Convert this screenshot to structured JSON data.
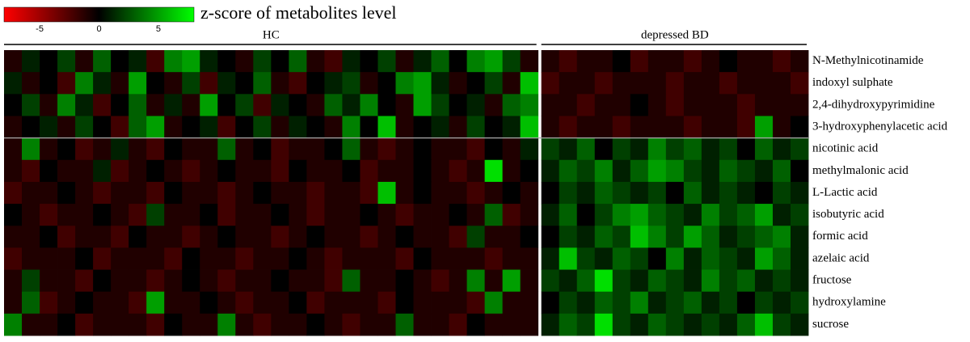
{
  "chart_data": {
    "type": "heatmap",
    "title": "z-score of metabolites level",
    "colors": [
      "#ff0000",
      "#000000",
      "#00ff00"
    ],
    "zlim": [
      -8,
      8
    ],
    "zticks": [
      -5,
      0,
      5
    ],
    "rows": [
      "N-Methylnicotinamide",
      "indoxyl sulphate",
      "2,4-dihydroxypyrimidine",
      "3-hydroxyphenylacetic acid",
      "nicotinic acid",
      "methylmalonic acid",
      "L-Lactic acid",
      "isobutyric acid",
      "formic acid",
      "azelaic acid",
      "fructose",
      "hydroxylamine",
      "sucrose"
    ],
    "groups": [
      {
        "name": "HC",
        "values": [
          [
            -1,
            1,
            0,
            2,
            -1,
            3,
            0,
            1,
            -2,
            4,
            5,
            1,
            0,
            -1,
            2,
            0,
            3,
            -1,
            -2,
            1,
            0,
            2,
            -1,
            1,
            3,
            0,
            4,
            5,
            2,
            -1
          ],
          [
            1,
            -1,
            0,
            -2,
            4,
            1,
            -1,
            5,
            0,
            -1,
            2,
            -2,
            1,
            0,
            3,
            -1,
            -2,
            0,
            1,
            2,
            -1,
            0,
            4,
            5,
            1,
            -1,
            0,
            2,
            -1,
            6
          ],
          [
            0,
            2,
            -1,
            4,
            1,
            -2,
            0,
            3,
            -1,
            1,
            -1,
            5,
            0,
            2,
            -2,
            1,
            0,
            -1,
            3,
            1,
            4,
            0,
            -1,
            5,
            2,
            0,
            1,
            -1,
            3,
            4
          ],
          [
            -1,
            0,
            1,
            -1,
            2,
            0,
            -2,
            3,
            5,
            -1,
            0,
            1,
            -2,
            0,
            2,
            -1,
            1,
            0,
            -1,
            4,
            0,
            6,
            -1,
            0,
            1,
            -1,
            2,
            0,
            1,
            6
          ],
          [
            -1,
            4,
            -1,
            0,
            -2,
            -1,
            1,
            -1,
            -2,
            0,
            -1,
            -1,
            3,
            -1,
            0,
            -2,
            -1,
            -1,
            0,
            3,
            -1,
            -2,
            -1,
            0,
            -1,
            -1,
            -2,
            0,
            -1,
            1
          ],
          [
            -1,
            -2,
            0,
            -1,
            -1,
            1,
            -2,
            -1,
            0,
            -1,
            -2,
            -1,
            0,
            -1,
            -1,
            -2,
            0,
            -1,
            -1,
            0,
            -2,
            -1,
            -1,
            0,
            -1,
            -2,
            -1,
            7,
            -1,
            0
          ],
          [
            -2,
            -1,
            -1,
            0,
            -1,
            -2,
            -1,
            -1,
            -2,
            0,
            -1,
            -1,
            -2,
            -1,
            0,
            -1,
            -1,
            -2,
            -1,
            -1,
            -2,
            6,
            -1,
            0,
            -1,
            -1,
            -2,
            -1,
            0,
            -1
          ],
          [
            0,
            -1,
            -2,
            -1,
            -1,
            0,
            -1,
            -2,
            2,
            -1,
            -1,
            0,
            -2,
            -1,
            -1,
            0,
            -1,
            -2,
            -1,
            -1,
            0,
            -1,
            -2,
            -1,
            -1,
            0,
            -1,
            3,
            -2,
            -1
          ],
          [
            -1,
            -1,
            0,
            -2,
            -1,
            -1,
            -2,
            0,
            -1,
            -1,
            -2,
            -1,
            0,
            -1,
            -1,
            -2,
            -1,
            0,
            -1,
            -1,
            -2,
            -1,
            0,
            -1,
            -1,
            -2,
            2,
            -1,
            -1,
            0
          ],
          [
            -2,
            -1,
            -1,
            -1,
            0,
            -2,
            -1,
            -1,
            -1,
            -2,
            0,
            -1,
            -1,
            -2,
            -1,
            -1,
            0,
            -1,
            -2,
            -1,
            -1,
            -1,
            -2,
            0,
            -1,
            -1,
            -1,
            -2,
            -1,
            -1
          ],
          [
            -1,
            2,
            -1,
            -1,
            -2,
            0,
            -1,
            -1,
            -2,
            -1,
            0,
            -1,
            -2,
            -1,
            -1,
            0,
            -1,
            -1,
            -2,
            3,
            -1,
            -1,
            0,
            -1,
            -2,
            -1,
            4,
            -1,
            5,
            -1
          ],
          [
            -1,
            3,
            -2,
            -1,
            0,
            -1,
            -1,
            -2,
            5,
            -1,
            -1,
            0,
            -1,
            -2,
            -1,
            -1,
            0,
            -2,
            -1,
            -1,
            -1,
            -2,
            0,
            -1,
            -1,
            -1,
            -2,
            4,
            -1,
            -1
          ],
          [
            4,
            -1,
            -1,
            0,
            -2,
            -1,
            -1,
            -1,
            -2,
            0,
            -1,
            -1,
            4,
            -1,
            -2,
            -1,
            -1,
            0,
            -1,
            -2,
            -1,
            -1,
            3,
            -1,
            -1,
            -2,
            0,
            -1,
            -1,
            -1
          ]
        ]
      },
      {
        "name": "depressed BD",
        "values": [
          [
            -1,
            -2,
            -1,
            -1,
            0,
            -2,
            -1,
            -1,
            -2,
            -1,
            0,
            -1,
            -1,
            -2,
            -1
          ],
          [
            -2,
            -1,
            -1,
            -2,
            -1,
            -1,
            -1,
            -2,
            -1,
            -1,
            -2,
            -1,
            -1,
            -1,
            -2
          ],
          [
            -1,
            -1,
            -2,
            -1,
            -1,
            0,
            -1,
            -2,
            -1,
            -1,
            -1,
            -2,
            -1,
            -1,
            -1
          ],
          [
            -1,
            -2,
            -1,
            -1,
            -2,
            -1,
            -1,
            -1,
            -2,
            -1,
            -1,
            -2,
            5,
            -1,
            0
          ],
          [
            2,
            1,
            3,
            0,
            2,
            1,
            4,
            2,
            3,
            1,
            2,
            0,
            3,
            1,
            2
          ],
          [
            1,
            3,
            2,
            4,
            1,
            3,
            5,
            4,
            2,
            1,
            3,
            2,
            1,
            3,
            0
          ],
          [
            0,
            2,
            1,
            3,
            2,
            1,
            2,
            0,
            3,
            1,
            2,
            1,
            0,
            2,
            1
          ],
          [
            1,
            3,
            0,
            2,
            4,
            5,
            3,
            2,
            1,
            4,
            2,
            3,
            5,
            1,
            2
          ],
          [
            0,
            2,
            1,
            3,
            2,
            6,
            4,
            2,
            5,
            3,
            1,
            2,
            3,
            4,
            1
          ],
          [
            1,
            6,
            2,
            1,
            3,
            2,
            0,
            4,
            1,
            3,
            2,
            1,
            5,
            3,
            1
          ],
          [
            2,
            1,
            3,
            7,
            2,
            1,
            3,
            2,
            1,
            4,
            2,
            3,
            1,
            2,
            1
          ],
          [
            0,
            2,
            1,
            3,
            2,
            4,
            1,
            2,
            3,
            1,
            2,
            0,
            2,
            1,
            2
          ],
          [
            1,
            3,
            2,
            7,
            2,
            1,
            3,
            2,
            1,
            2,
            1,
            3,
            6,
            2,
            1
          ]
        ]
      }
    ]
  }
}
